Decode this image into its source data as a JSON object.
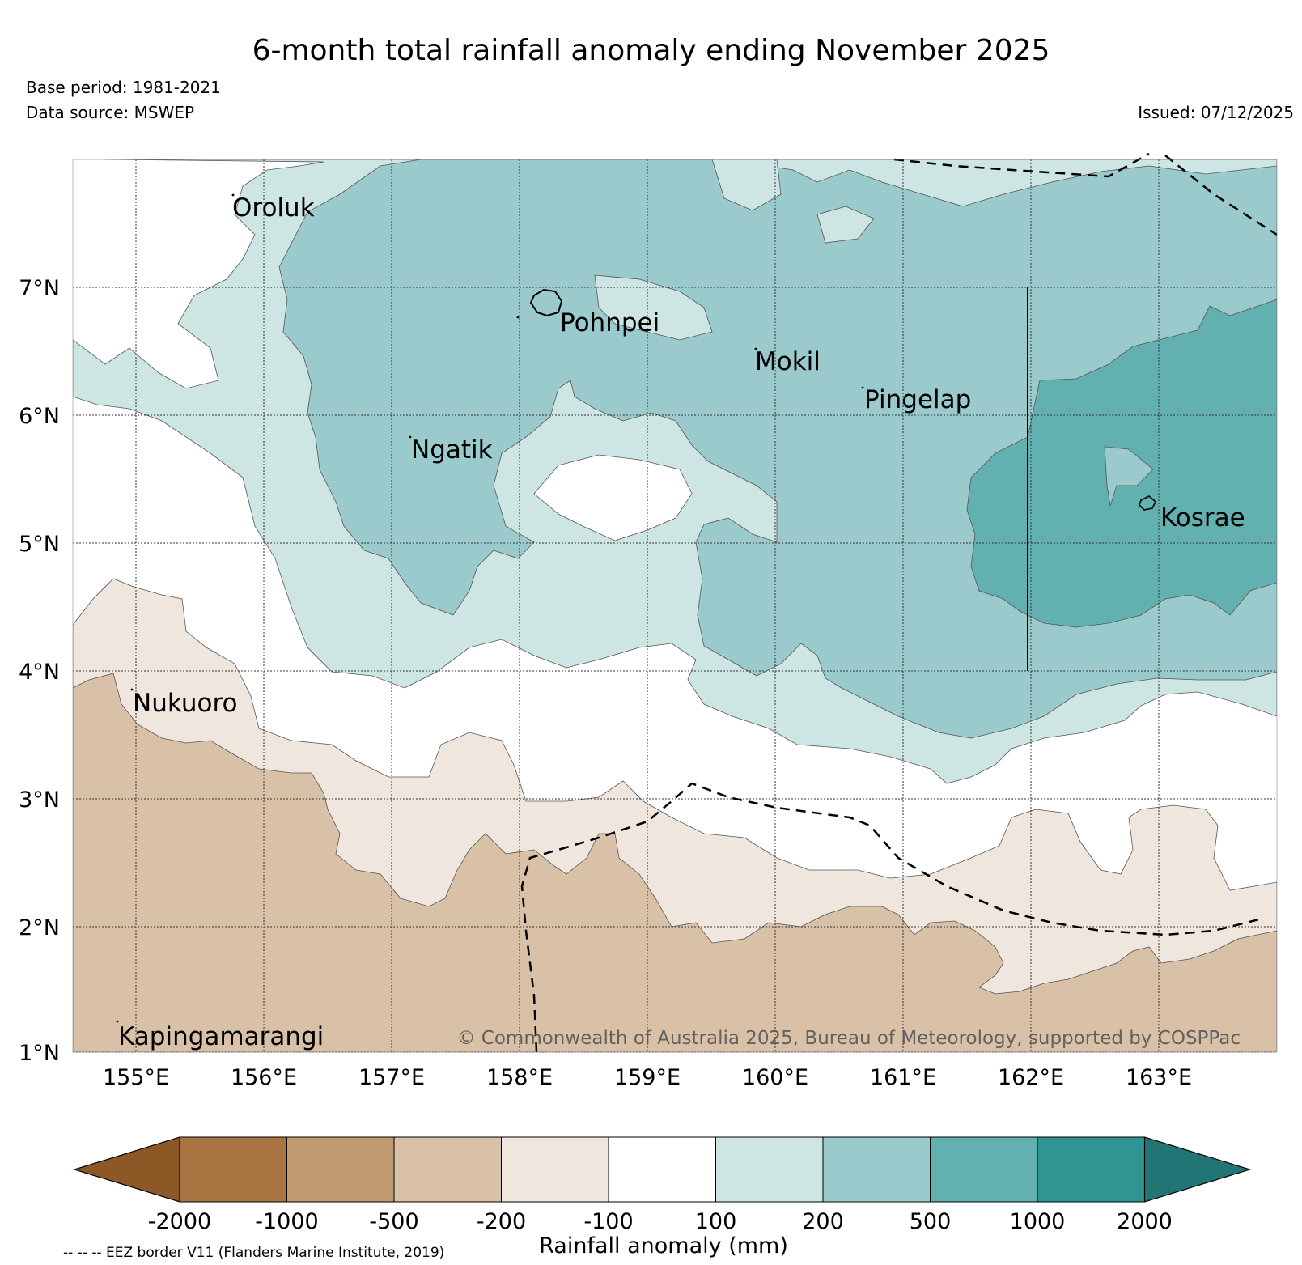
{
  "title": "6-month total rainfall anomaly ending November 2025",
  "base_period": "Base period: 1981-2021",
  "data_source": "Data source: MSWEP",
  "issued": "Issued: 07/12/2025",
  "copyright": "© Commonwealth of Australia 2025, Bureau of Meteorology, supported by COSPPac",
  "eez_note": "-- -- -- EEZ border V11 (Flanders Marine Institute, 2019)",
  "lat_labels": [
    "7°N",
    "6°N",
    "5°N",
    "4°N",
    "3°N",
    "2°N",
    "1°N"
  ],
  "lon_labels": [
    "155°E",
    "156°E",
    "157°E",
    "158°E",
    "159°E",
    "160°E",
    "161°E",
    "162°E",
    "163°E"
  ],
  "places": {
    "oroluk": "Oroluk",
    "pohnpei": "Pohnpei",
    "mokil": "Mokil",
    "pingelap": "Pingelap",
    "ngatik": "Ngatik",
    "kosrae": "Kosrae",
    "nukuoro": "Nukuoro",
    "kapingamarangi": "Kapingamarangi"
  },
  "colorbar": {
    "label": "Rainfall anomaly (mm)",
    "ticks": [
      "-2000",
      "-1000",
      "-500",
      "-200",
      "-100",
      "100",
      "200",
      "500",
      "1000",
      "2000"
    ],
    "colors": [
      "#8e5826",
      "#a87542",
      "#c29a72",
      "#d9c1a8",
      "#efe6dd",
      "#ffffff",
      "#cde5e3",
      "#9acacb",
      "#63b0b0",
      "#2f9593",
      "#227575"
    ]
  },
  "palette": {
    "dry_strong": "#d9c1a8",
    "dry_light": "#efe6dd",
    "neutral": "#ffffff",
    "wet_light": "#cde5e3",
    "wet_mid": "#9acacb",
    "wet_strong": "#63b0b0"
  }
}
